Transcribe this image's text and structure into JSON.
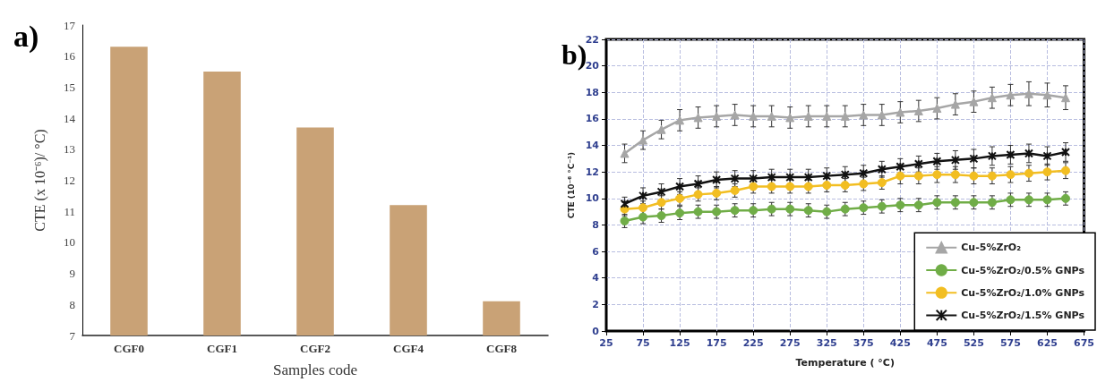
{
  "chart_data": [
    {
      "type": "bar",
      "title": "a)",
      "xlabel": "Samples code",
      "ylabel": "CTE (x 10⁻⁶)/ °C)",
      "categories": [
        "CGF0",
        "CGF1",
        "CGF2",
        "CGF4",
        "CGF8"
      ],
      "values": [
        16.3,
        15.5,
        13.7,
        11.2,
        8.1
      ],
      "color": "#c9a276",
      "ylim": [
        7,
        17
      ],
      "yticks": [
        7,
        8,
        9,
        10,
        11,
        12,
        13,
        14,
        15,
        16,
        17
      ],
      "grid": false
    },
    {
      "type": "line",
      "title": "b)",
      "xlabel": "Temperature ( °C)",
      "ylabel": "CTE (10⁻⁶ °C⁻¹)",
      "x": [
        50,
        75,
        100,
        125,
        150,
        175,
        200,
        225,
        250,
        275,
        300,
        325,
        350,
        375,
        400,
        425,
        450,
        475,
        500,
        525,
        550,
        575,
        600,
        625,
        650
      ],
      "series": [
        {
          "name": "Cu-5%ZrO₂",
          "color": "#a6a6a6",
          "marker": "triangle",
          "values": [
            13.4,
            14.4,
            15.2,
            15.9,
            16.1,
            16.2,
            16.3,
            16.2,
            16.2,
            16.1,
            16.2,
            16.2,
            16.2,
            16.3,
            16.3,
            16.5,
            16.6,
            16.8,
            17.1,
            17.3,
            17.6,
            17.8,
            17.9,
            17.8,
            17.6
          ],
          "errors": [
            0.7,
            0.7,
            0.7,
            0.8,
            0.8,
            0.8,
            0.8,
            0.8,
            0.8,
            0.8,
            0.8,
            0.8,
            0.8,
            0.8,
            0.8,
            0.8,
            0.8,
            0.8,
            0.8,
            0.8,
            0.8,
            0.8,
            0.9,
            0.9,
            0.9
          ]
        },
        {
          "name": "Cu-5%ZrO₂/0.5% GNPs",
          "color": "#70ad47",
          "marker": "circle",
          "values": [
            8.3,
            8.6,
            8.7,
            8.9,
            9.0,
            9.0,
            9.1,
            9.1,
            9.2,
            9.2,
            9.1,
            9.0,
            9.2,
            9.3,
            9.4,
            9.5,
            9.5,
            9.7,
            9.7,
            9.7,
            9.7,
            9.9,
            9.9,
            9.9,
            10.0
          ],
          "errors": [
            0.5,
            0.5,
            0.5,
            0.5,
            0.5,
            0.5,
            0.5,
            0.5,
            0.5,
            0.5,
            0.5,
            0.5,
            0.5,
            0.5,
            0.5,
            0.5,
            0.5,
            0.5,
            0.5,
            0.5,
            0.5,
            0.5,
            0.5,
            0.5,
            0.5
          ]
        },
        {
          "name": "Cu-5%ZrO₂/1.0% GNPs",
          "color": "#f2be22",
          "marker": "circle",
          "values": [
            9.2,
            9.3,
            9.7,
            10.0,
            10.3,
            10.4,
            10.6,
            10.9,
            10.9,
            10.9,
            10.9,
            11.0,
            11.0,
            11.1,
            11.2,
            11.7,
            11.7,
            11.8,
            11.8,
            11.7,
            11.7,
            11.8,
            11.9,
            12.0,
            12.1
          ],
          "errors": [
            0.5,
            0.5,
            0.5,
            0.5,
            0.5,
            0.5,
            0.5,
            0.5,
            0.5,
            0.5,
            0.5,
            0.5,
            0.5,
            0.5,
            0.5,
            0.6,
            0.6,
            0.6,
            0.6,
            0.6,
            0.6,
            0.6,
            0.6,
            0.6,
            0.6
          ]
        },
        {
          "name": "Cu-5%ZrO₂/1.5% GNPs",
          "color": "#111111",
          "marker": "cross",
          "values": [
            9.6,
            10.2,
            10.5,
            10.9,
            11.1,
            11.4,
            11.5,
            11.5,
            11.6,
            11.6,
            11.6,
            11.7,
            11.8,
            11.9,
            12.2,
            12.4,
            12.6,
            12.8,
            12.9,
            13.0,
            13.2,
            13.3,
            13.4,
            13.2,
            13.5
          ],
          "errors": [
            0.5,
            0.6,
            0.6,
            0.6,
            0.6,
            0.6,
            0.6,
            0.6,
            0.6,
            0.6,
            0.6,
            0.6,
            0.6,
            0.6,
            0.6,
            0.6,
            0.6,
            0.6,
            0.7,
            0.7,
            0.7,
            0.7,
            0.7,
            0.7,
            0.7
          ]
        }
      ],
      "xlim": [
        25,
        675
      ],
      "xticks": [
        25,
        75,
        125,
        175,
        225,
        275,
        325,
        375,
        425,
        475,
        525,
        575,
        625,
        675
      ],
      "ylim": [
        0,
        22
      ],
      "yticks": [
        0,
        2,
        4,
        6,
        8,
        10,
        12,
        14,
        16,
        18,
        20,
        22
      ],
      "grid": true,
      "legend": "bottom right"
    }
  ]
}
